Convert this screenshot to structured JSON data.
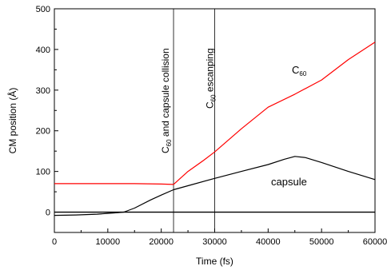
{
  "chart_data": {
    "type": "line",
    "title": "",
    "xlabel": "Time (fs)",
    "ylabel": "CM position (Å)",
    "xlim": [
      0,
      60000
    ],
    "ylim": [
      -50,
      500
    ],
    "xticks": [
      0,
      10000,
      20000,
      30000,
      40000,
      50000,
      60000
    ],
    "yticks": [
      0,
      100,
      200,
      300,
      400,
      500
    ],
    "tick_labels_x": [
      "0",
      "10000",
      "20000",
      "30000",
      "40000",
      "50000",
      "60000"
    ],
    "tick_labels_y": [
      "0",
      "100",
      "200",
      "300",
      "400",
      "500"
    ],
    "grid": false,
    "series": [
      {
        "name": "C60",
        "label_main": "C",
        "label_sub": "60",
        "color": "#ff0000",
        "x": [
          0,
          5000,
          10000,
          15000,
          20000,
          22300,
          25000,
          28000,
          30000,
          35000,
          40000,
          45000,
          50000,
          55000,
          60000
        ],
        "y": [
          70,
          70,
          70,
          70,
          69,
          68,
          100,
          128,
          148,
          205,
          258,
          290,
          325,
          375,
          418
        ]
      },
      {
        "name": "capsule",
        "label_main": "capsule",
        "color": "#000000",
        "x": [
          0,
          4000,
          8000,
          10000,
          12000,
          13000,
          15000,
          18000,
          20000,
          22300,
          25000,
          30000,
          35000,
          40000,
          43000,
          45000,
          47000,
          50000,
          55000,
          60000
        ],
        "y": [
          -8,
          -7,
          -5,
          -3,
          -1,
          0,
          10,
          30,
          42,
          55,
          65,
          83,
          100,
          117,
          130,
          137,
          134,
          122,
          100,
          80
        ]
      }
    ],
    "reference_lines": [
      {
        "axis": "y",
        "value": 0
      },
      {
        "axis": "x",
        "value": 22300
      },
      {
        "axis": "x",
        "value": 30000
      }
    ],
    "annotations": [
      {
        "id": "collision",
        "main": "C",
        "sub": "60",
        "rest": " and capsule collision"
      },
      {
        "id": "escaping",
        "main": "C",
        "sub": "60",
        "rest": " escanping"
      }
    ]
  }
}
